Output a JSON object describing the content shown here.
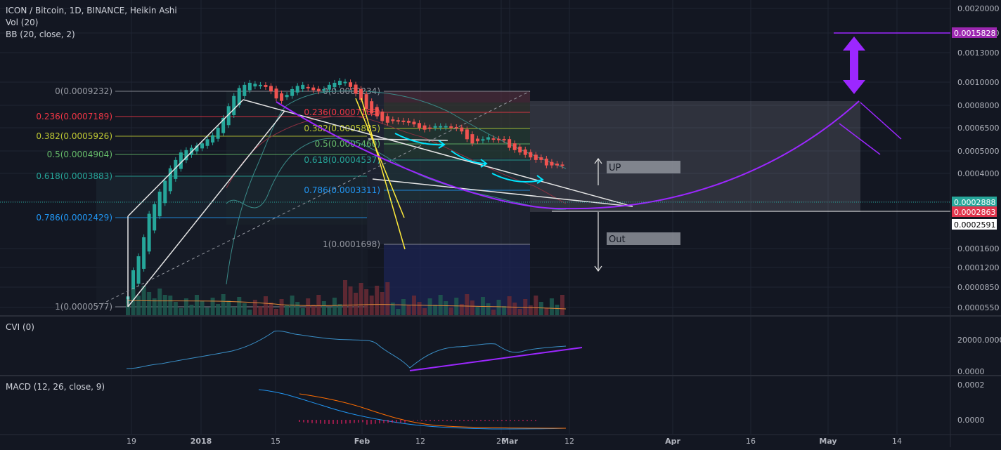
{
  "header": {
    "symbol_line": "ICON / Bitcoin, 1D, BINANCE, Heikin Ashi",
    "vol_line": "Vol (20)",
    "bb_line": "BB (20, close, 2)"
  },
  "cvi": {
    "title": "CVI (0)",
    "ticks": [
      "20000.0000",
      "0.0000"
    ]
  },
  "macd": {
    "title": "MACD (12, 26, close, 9)",
    "ticks": [
      "0.0002",
      "0.0000"
    ]
  },
  "price_axis": {
    "ticks": [
      "0.0020000",
      "0.0016000",
      "0.0013000",
      "0.0010000",
      "0.0008000",
      "0.0006500",
      "0.0005000",
      "0.0004000",
      "0.0002888",
      "0.0001600",
      "0.0001200",
      "0.0000850",
      "0.0000550"
    ]
  },
  "price_labels": [
    {
      "text": "0.0015828",
      "bg": "#9c27b0",
      "fg": "#ffffff"
    },
    {
      "text": "0.0002888",
      "bg": "#26a69a",
      "fg": "#ffffff"
    },
    {
      "text": "0.0002863",
      "bg": "#e0344c",
      "fg": "#ffffff"
    },
    {
      "text": "0.0002591",
      "bg": "#ffffff",
      "fg": "#000000"
    }
  ],
  "time_axis": {
    "ticks": [
      "19",
      "2018",
      "15",
      "Feb",
      "12",
      "26",
      "Mar",
      "12",
      "Apr",
      "16",
      "May",
      "14"
    ]
  },
  "fib_left": [
    {
      "text": "0(0.0009232)",
      "color": "#9598a1"
    },
    {
      "text": "0.236(0.0007189)",
      "color": "#f23645"
    },
    {
      "text": "0.382(0.0005926)",
      "color": "#c0ca33"
    },
    {
      "text": "0.5(0.0004904)",
      "color": "#66bb6a"
    },
    {
      "text": "0.618(0.0003883)",
      "color": "#26a69a"
    },
    {
      "text": "0.786(0.0002429)",
      "color": "#2196f3"
    },
    {
      "text": "1(0.0000577)",
      "color": "#9598a1"
    }
  ],
  "fib_right": [
    {
      "text": "0(0.0009234)",
      "color": "#9598a1"
    },
    {
      "text": "0.236(0.0007165)",
      "color": "#f23645"
    },
    {
      "text": "0.382(0.0005885)",
      "color": "#c0ca33"
    },
    {
      "text": "0.5(0.0005460)",
      "color": "#66bb6a"
    },
    {
      "text": "0.618(0.0004537)",
      "color": "#26a69a"
    },
    {
      "text": "0.786(0.0003311)",
      "color": "#2196f3"
    },
    {
      "text": "1(0.0001698)",
      "color": "#9598a1"
    }
  ],
  "annotations": {
    "up": "UP",
    "out": "Out"
  },
  "colors": {
    "background": "#131722",
    "up_candle": "#26a69a",
    "down_candle": "#ef5350",
    "accent_purple": "#9c27ff",
    "trend_white": "#e6e6e6",
    "trend_yellow": "#ffeb3b",
    "cyan_arrow": "#00e5ff",
    "bb_line": "#26a69a",
    "grid": "#1f2433"
  },
  "chart_data": {
    "type": "line",
    "title": "ICON / Bitcoin, 1D, BINANCE, Heikin Ashi",
    "xlabel": "",
    "ylabel": "",
    "x_range": [
      "2017-12-19",
      "2018-05-20"
    ],
    "ylim": [
      5.5e-05,
      0.002
    ],
    "y_scale": "log",
    "grid": true,
    "series": [
      {
        "name": "",
        "values": [
          [
            "2017-12-19",
            5.8e-05
          ],
          [
            "2017-12-20",
            8e-05
          ],
          [
            "2017-12-21",
            9.5e-05
          ],
          [
            "2017-12-22",
            0.00012
          ],
          [
            "2017-12-23",
            0.00016
          ],
          [
            "2017-12-24",
            0.00018
          ],
          [
            "2017-12-25",
            0.00021
          ],
          [
            "2017-12-26",
            0.00024
          ],
          [
            "2017-12-27",
            0.00028
          ],
          [
            "2017-12-28",
            0.00031
          ],
          [
            "2017-12-29",
            0.00034
          ],
          [
            "2017-12-30",
            0.00035
          ],
          [
            "2017-12-31",
            0.00036
          ],
          [
            "2018-01-01",
            0.00037
          ],
          [
            "2018-01-02",
            0.00038
          ],
          [
            "2018-01-03",
            0.0004
          ],
          [
            "2018-01-04",
            0.00042
          ],
          [
            "2018-01-05",
            0.00046
          ],
          [
            "2018-01-06",
            0.00052
          ],
          [
            "2018-01-07",
            0.0006
          ],
          [
            "2018-01-08",
            0.00068
          ],
          [
            "2018-01-09",
            0.00075
          ],
          [
            "2018-01-10",
            0.00078
          ],
          [
            "2018-01-11",
            0.0008
          ],
          [
            "2018-01-12",
            0.00079
          ],
          [
            "2018-01-13",
            0.00078
          ],
          [
            "2018-01-14",
            0.00076
          ],
          [
            "2018-01-15",
            0.00072
          ],
          [
            "2018-01-16",
            0.00066
          ],
          [
            "2018-01-17",
            0.00064
          ],
          [
            "2018-01-18",
            0.00069
          ],
          [
            "2018-01-19",
            0.00074
          ],
          [
            "2018-01-20",
            0.00077
          ],
          [
            "2018-01-21",
            0.00078
          ],
          [
            "2018-01-22",
            0.00075
          ],
          [
            "2018-01-23",
            0.00073
          ],
          [
            "2018-01-24",
            0.00072
          ],
          [
            "2018-01-25",
            0.00074
          ],
          [
            "2018-01-26",
            0.00078
          ],
          [
            "2018-01-27",
            0.0008
          ],
          [
            "2018-01-28",
            0.00082
          ],
          [
            "2018-01-29",
            0.00081
          ],
          [
            "2018-01-30",
            0.00076
          ],
          [
            "2018-01-31",
            0.0007
          ],
          [
            "2018-02-01",
            0.00065
          ],
          [
            "2018-02-02",
            0.00058
          ],
          [
            "2018-02-03",
            0.00055
          ],
          [
            "2018-02-04",
            0.00053
          ],
          [
            "2018-02-05",
            0.0005
          ],
          [
            "2018-02-06",
            0.00049
          ],
          [
            "2018-02-07",
            0.0005
          ],
          [
            "2018-02-08",
            0.0005
          ],
          [
            "2018-02-09",
            0.0005
          ],
          [
            "2018-02-10",
            0.00049
          ],
          [
            "2018-02-11",
            0.00048
          ],
          [
            "2018-02-12",
            0.00046
          ],
          [
            "2018-02-13",
            0.00045
          ],
          [
            "2018-02-14",
            0.00046
          ],
          [
            "2018-02-15",
            0.00047
          ],
          [
            "2018-02-16",
            0.00047
          ],
          [
            "2018-02-17",
            0.00047
          ],
          [
            "2018-02-18",
            0.00046
          ],
          [
            "2018-02-19",
            0.00046
          ],
          [
            "2018-02-20",
            0.00044
          ],
          [
            "2018-02-21",
            0.0004
          ],
          [
            "2018-02-22",
            0.00038
          ],
          [
            "2018-02-23",
            0.00039
          ],
          [
            "2018-02-24",
            0.0004
          ],
          [
            "2018-02-25",
            0.00041
          ],
          [
            "2018-02-26",
            0.0004
          ],
          [
            "2018-02-27",
            0.0004
          ],
          [
            "2018-02-28",
            0.0004
          ],
          [
            "2018-03-01",
            0.00036
          ],
          [
            "2018-03-02",
            0.00035
          ],
          [
            "2018-03-03",
            0.00034
          ],
          [
            "2018-03-04",
            0.00033
          ],
          [
            "2018-03-05",
            0.00032
          ],
          [
            "2018-03-06",
            0.00031
          ],
          [
            "2018-03-07",
            0.00031
          ],
          [
            "2018-03-08",
            0.00029
          ],
          [
            "2018-03-09",
            0.00029
          ],
          [
            "2018-03-10",
            0.00029
          ],
          [
            "2018-03-11",
            0.000289
          ]
        ]
      }
    ],
    "fib_levels_left": [
      0.0009232,
      0.0007189,
      0.0005926,
      0.0004904,
      0.0003883,
      0.0002429,
      5.77e-05
    ],
    "fib_levels_right": [
      0.0009234,
      0.0007165,
      0.0005885,
      0.000546,
      0.0004537,
      0.0003311,
      0.0001698
    ],
    "cvi_range": [
      0,
      20000
    ],
    "macd_range": [
      0,
      0.0002
    ]
  }
}
